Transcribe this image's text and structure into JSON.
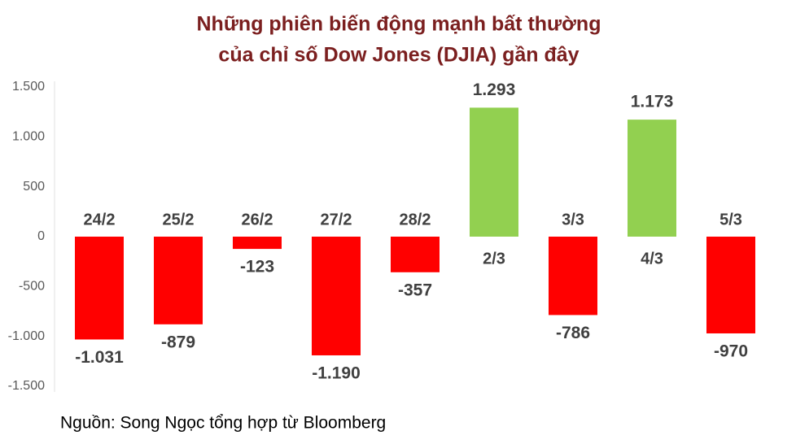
{
  "chart_data": {
    "type": "bar",
    "title": [
      "Những phiên biến động mạnh bất thường",
      "của chỉ số Dow Jones (DJIA) gần đây"
    ],
    "categories": [
      "24/2",
      "25/2",
      "26/2",
      "27/2",
      "28/2",
      "2/3",
      "3/3",
      "4/3",
      "5/3"
    ],
    "values": [
      -1031,
      -879,
      -123,
      -1190,
      -357,
      1293,
      -786,
      1173,
      -970
    ],
    "value_labels": [
      "-1.031",
      "-879",
      "-123",
      "-1.190",
      "-357",
      "1.293",
      "-786",
      "1.173",
      "-970"
    ],
    "positive_color": "#92d050",
    "negative_color": "#ff0000",
    "ylim": [
      -1500,
      1500
    ],
    "yticks": [
      {
        "value": -1500,
        "label": "-1.500"
      },
      {
        "value": -1000,
        "label": "-1.000"
      },
      -500,
      0,
      500,
      {
        "value": 1000,
        "label": "1.000"
      },
      {
        "value": 1500,
        "label": "1.500"
      }
    ],
    "grid": false,
    "source": "Nguồn: Song Ngọc tổng hợp từ Bloomberg"
  }
}
